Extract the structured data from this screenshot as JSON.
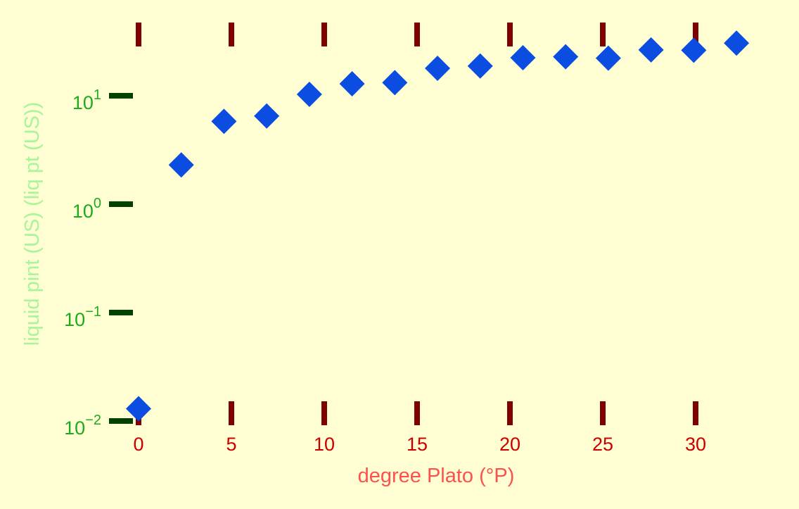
{
  "chart_data": {
    "type": "scatter",
    "title": "",
    "xlabel": "degree Plato (°P)",
    "ylabel": "liquid pint (US) (liq pt (US))",
    "xscale": "linear",
    "yscale": "log",
    "xlim": [
      -1.2,
      33.5
    ],
    "ylim": [
      0.0085,
      40
    ],
    "xticks": [
      {
        "value": 0,
        "label": "0"
      },
      {
        "value": 5,
        "label": "5"
      },
      {
        "value": 10,
        "label": "10"
      },
      {
        "value": 15,
        "label": "15"
      },
      {
        "value": 20,
        "label": "20"
      },
      {
        "value": 25,
        "label": "25"
      },
      {
        "value": 30,
        "label": "30"
      }
    ],
    "yticks": [
      {
        "value": 0.01,
        "base": "10",
        "exp": "−2"
      },
      {
        "value": 0.1,
        "base": "10",
        "exp": "−1"
      },
      {
        "value": 1,
        "base": "10",
        "exp": "0"
      },
      {
        "value": 10,
        "base": "10",
        "exp": "1"
      }
    ],
    "series": [
      {
        "name": "data",
        "marker": "diamond",
        "color": "#0a4de0",
        "x": [
          0,
          2.3,
          4.6,
          6.9,
          9.2,
          11.5,
          13.8,
          16.1,
          18.4,
          20.7,
          23.0,
          25.3,
          27.6,
          29.9,
          32.2
        ],
        "y": [
          0.013,
          2.3,
          5.8,
          6.5,
          10.3,
          12.9,
          13.2,
          17.9,
          18.8,
          22.4,
          22.9,
          22.2,
          26.5,
          26.3,
          30.6
        ]
      }
    ],
    "colors": {
      "background": "#ffffd3",
      "xtick_mark": "#7f0000",
      "ytick_mark": "#004000",
      "xtick_label": "#cc0000",
      "ytick_label": "#1daa1d",
      "xlabel": "#ff5050",
      "ylabel": "#a8f59a"
    }
  }
}
